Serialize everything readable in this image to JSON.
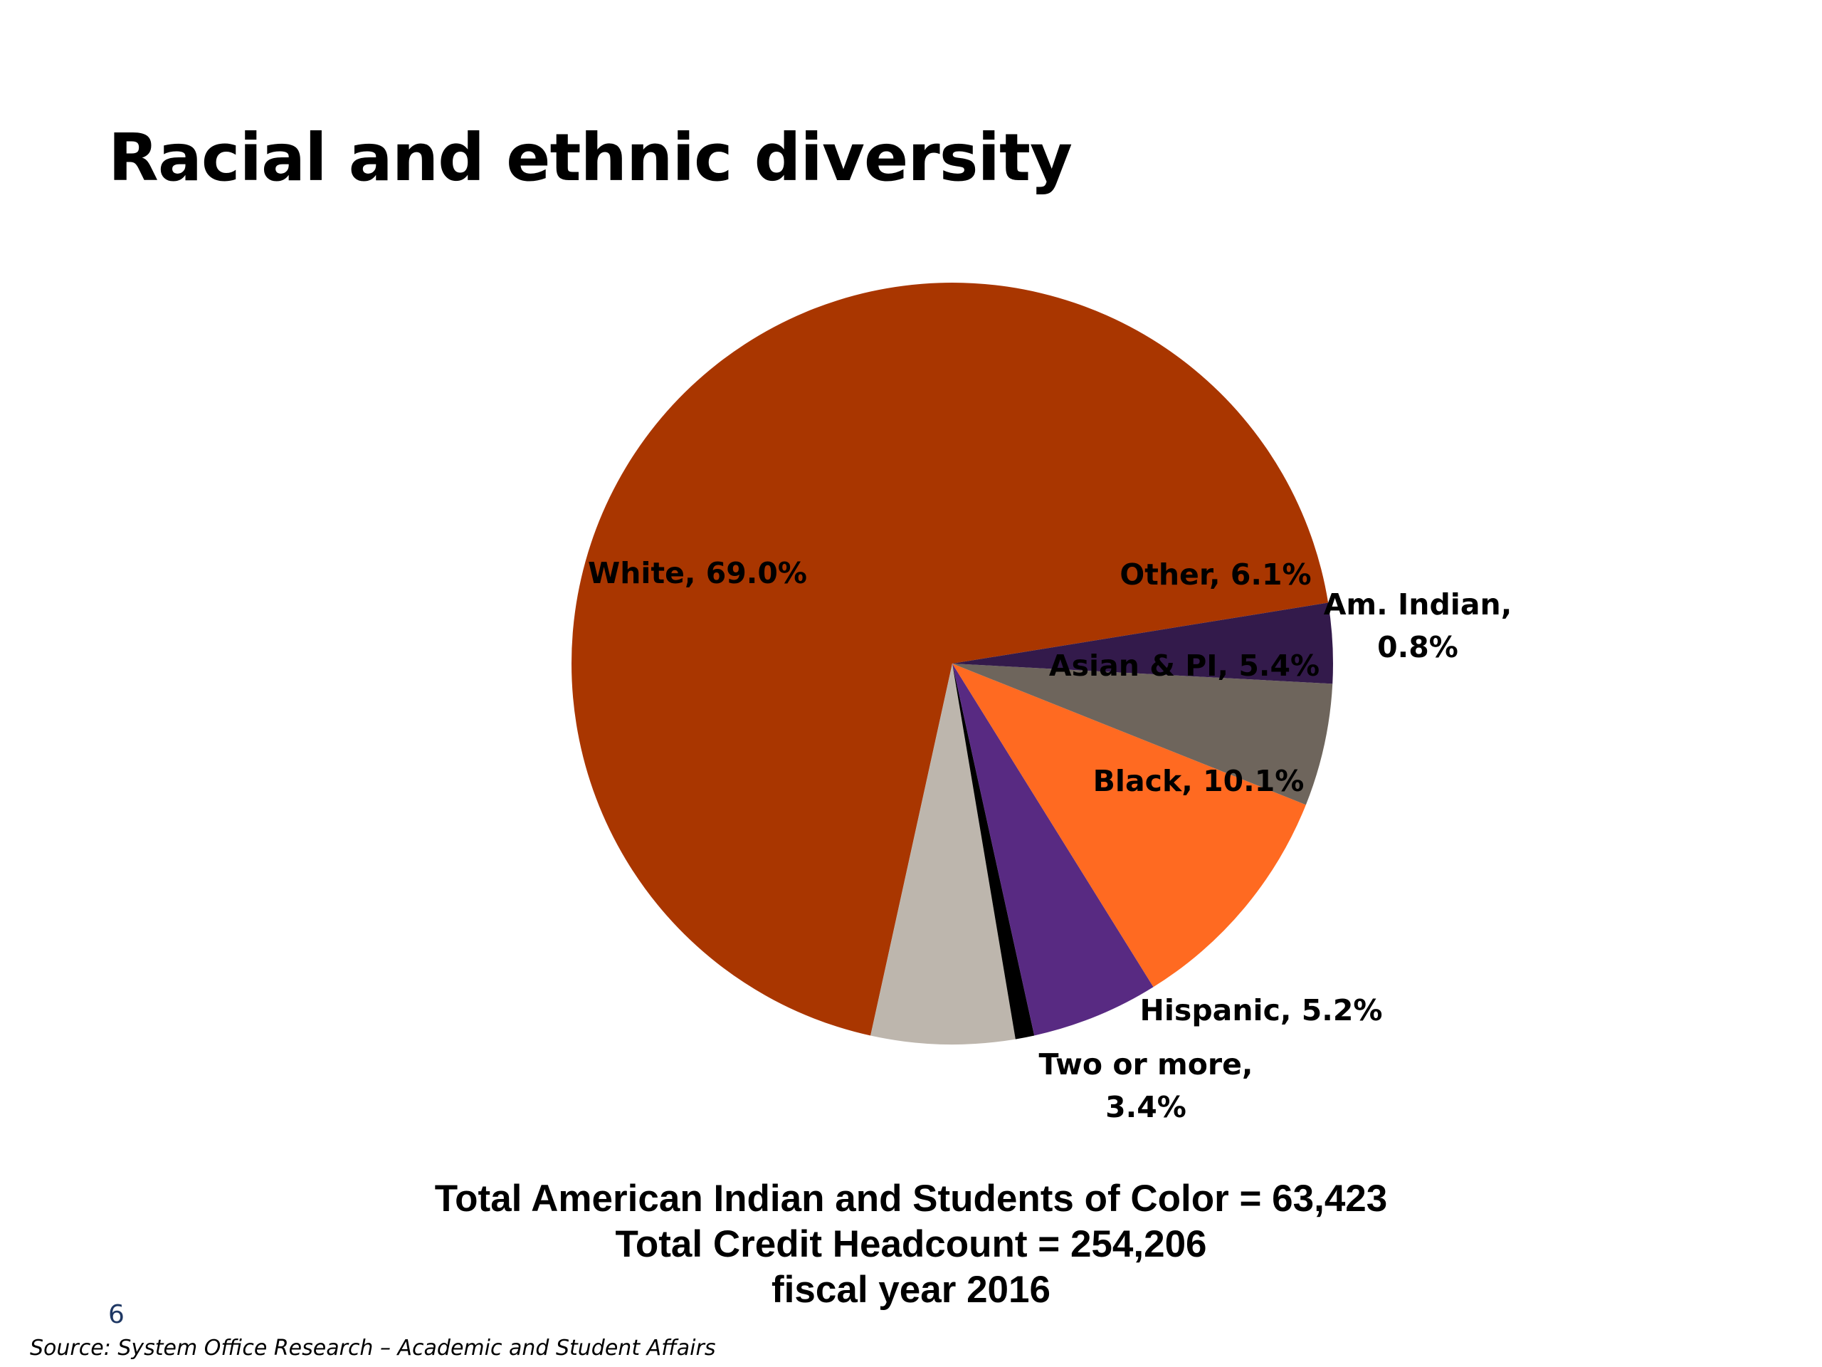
{
  "slide": {
    "title": "Racial and ethnic diversity",
    "page_number": "6",
    "source": "Source: System Office Research – Academic and Student Affairs"
  },
  "totals": {
    "line1": "Total American Indian and Students of Color = 63,423",
    "line2": "Total Credit Headcount = 254,206",
    "line3": "fiscal year 2016"
  },
  "chart_data": {
    "type": "pie",
    "title": "",
    "slices": [
      {
        "name": "White",
        "value": 69.0,
        "label_lines": [
          "White, 69.0%"
        ],
        "color": "#A93600"
      },
      {
        "name": "Other",
        "value": 6.1,
        "label_lines": [
          "Other, 6.1%"
        ],
        "color": "#BDB6AD"
      },
      {
        "name": "Am. Indian",
        "value": 0.8,
        "label_lines": [
          "Am. Indian,",
          "0.8%"
        ],
        "color": "#000000"
      },
      {
        "name": "Asian & PI",
        "value": 5.4,
        "label_lines": [
          "Asian & PI, 5.4%"
        ],
        "color": "#582A82"
      },
      {
        "name": "Black",
        "value": 10.1,
        "label_lines": [
          "Black, 10.1%"
        ],
        "color": "#FF6A21"
      },
      {
        "name": "Hispanic",
        "value": 5.2,
        "label_lines": [
          "Hispanic, 5.2%"
        ],
        "color": "#6E655C"
      },
      {
        "name": "Two or more",
        "value": 3.4,
        "label_lines": [
          "Two or more,",
          "3.4%"
        ],
        "color": "#331A4B"
      }
    ]
  }
}
